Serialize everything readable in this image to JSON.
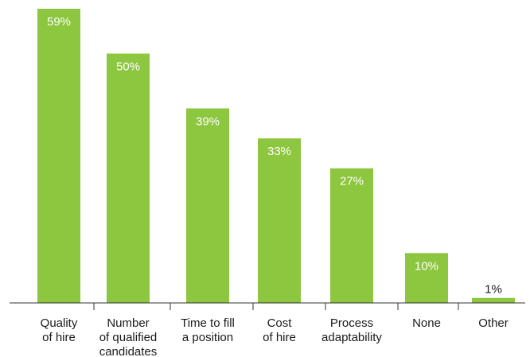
{
  "chart_data": {
    "type": "bar",
    "categories": [
      [
        "Quality",
        "of hire"
      ],
      [
        "Number",
        "of qualified",
        "candidates"
      ],
      [
        "Time to fill",
        "a position"
      ],
      [
        "Cost",
        "of hire"
      ],
      [
        "Process",
        "adaptability"
      ],
      [
        "None"
      ],
      [
        "Other"
      ]
    ],
    "values": [
      59,
      50,
      39,
      33,
      27,
      10,
      1
    ],
    "value_labels": [
      "59%",
      "50%",
      "39%",
      "33%",
      "27%",
      "10%",
      "1%"
    ],
    "title": "",
    "xlabel": "",
    "ylabel": "",
    "ylim": [
      0,
      60
    ],
    "grid": false,
    "bar_color": "#8dc63f",
    "label_inside_color": "#ffffff",
    "label_outside_color": "#1a1a1a"
  }
}
